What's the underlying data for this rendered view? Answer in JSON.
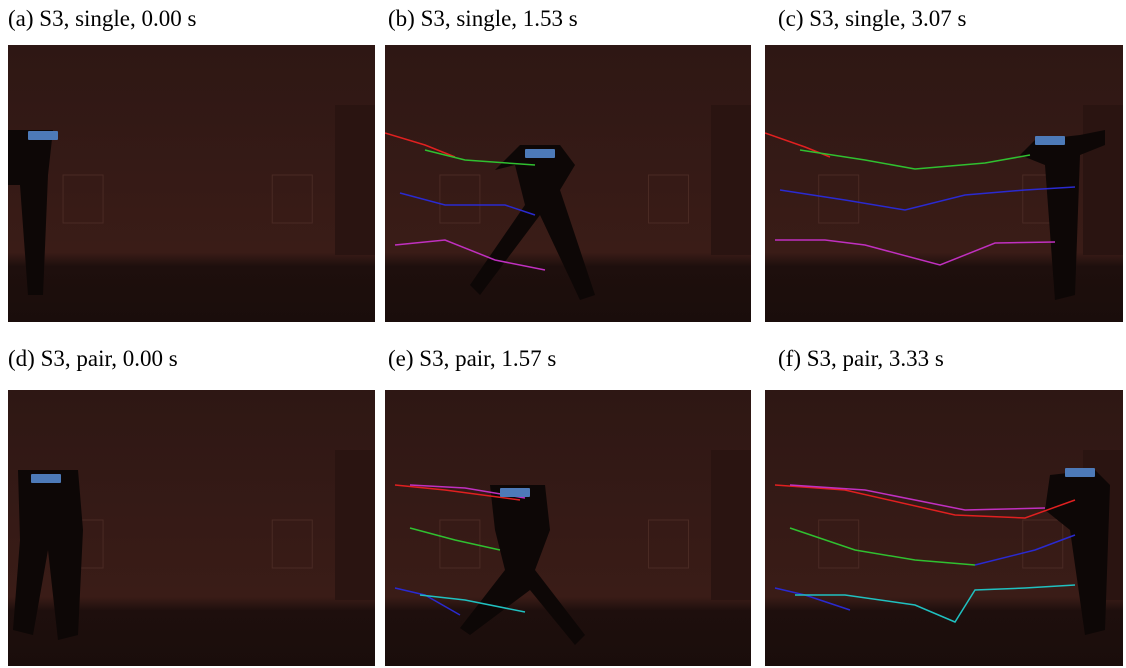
{
  "panels": [
    {
      "caption": "(a) S3, single, 0.00 s"
    },
    {
      "caption": "(b) S3, single, 1.53 s"
    },
    {
      "caption": "(c) S3, single, 3.07 s"
    },
    {
      "caption": "(d) S3, pair, 0.00 s"
    },
    {
      "caption": "(e) S3, pair, 1.57 s"
    },
    {
      "caption": "(f) S3, pair, 3.33 s"
    }
  ]
}
